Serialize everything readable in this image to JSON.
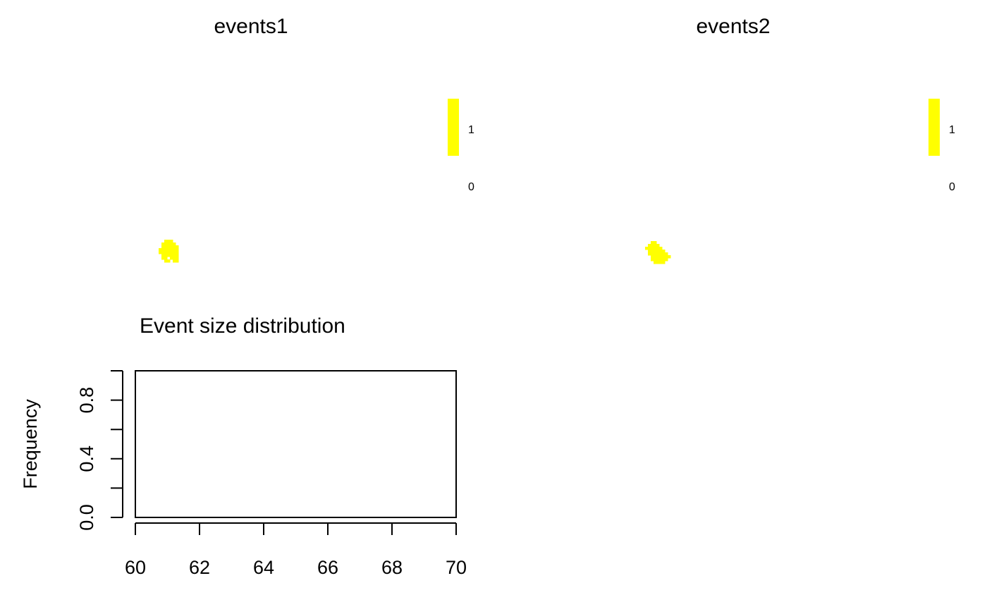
{
  "colors": {
    "event": "#ffff00",
    "axis": "#000000",
    "background": "#ffffff"
  },
  "chart_data": [
    {
      "type": "heatmap",
      "title": "events1",
      "legend": {
        "placement": "right",
        "ticks": [
          "1",
          "0"
        ],
        "levels": [
          {
            "value": 1,
            "color": "#ffff00"
          },
          {
            "value": 0,
            "color": "#ffffff"
          }
        ]
      },
      "value_present": 1,
      "event_cells": [
        [
          1,
          0
        ],
        [
          2,
          0
        ],
        [
          3,
          0
        ],
        [
          0,
          1
        ],
        [
          1,
          1
        ],
        [
          2,
          1
        ],
        [
          3,
          1
        ],
        [
          4,
          1
        ],
        [
          0,
          2
        ],
        [
          1,
          2
        ],
        [
          2,
          2
        ],
        [
          3,
          2
        ],
        [
          4,
          2
        ],
        [
          5,
          2
        ],
        [
          -1,
          3
        ],
        [
          0,
          3
        ],
        [
          1,
          3
        ],
        [
          2,
          3
        ],
        [
          3,
          3
        ],
        [
          4,
          3
        ],
        [
          5,
          3
        ],
        [
          -1,
          4
        ],
        [
          0,
          4
        ],
        [
          1,
          4
        ],
        [
          2,
          4
        ],
        [
          3,
          4
        ],
        [
          4,
          4
        ],
        [
          5,
          4
        ],
        [
          0,
          5
        ],
        [
          1,
          5
        ],
        [
          2,
          5
        ],
        [
          3,
          5
        ],
        [
          4,
          5
        ],
        [
          5,
          5
        ],
        [
          0,
          6
        ],
        [
          1,
          6
        ],
        [
          3,
          6
        ],
        [
          4,
          6
        ],
        [
          5,
          6
        ],
        [
          1,
          7
        ],
        [
          2,
          7
        ],
        [
          4,
          7
        ],
        [
          5,
          7
        ]
      ]
    },
    {
      "type": "heatmap",
      "title": "events2",
      "legend": {
        "placement": "right",
        "ticks": [
          "1",
          "0"
        ],
        "levels": [
          {
            "value": 1,
            "color": "#ffff00"
          },
          {
            "value": 0,
            "color": "#ffffff"
          }
        ]
      },
      "value_present": 1,
      "event_cells": [
        [
          1,
          0
        ],
        [
          2,
          0
        ],
        [
          0,
          1
        ],
        [
          1,
          1
        ],
        [
          2,
          1
        ],
        [
          3,
          1
        ],
        [
          -1,
          2
        ],
        [
          0,
          2
        ],
        [
          1,
          2
        ],
        [
          2,
          2
        ],
        [
          3,
          2
        ],
        [
          4,
          2
        ],
        [
          0,
          3
        ],
        [
          1,
          3
        ],
        [
          2,
          3
        ],
        [
          3,
          3
        ],
        [
          4,
          3
        ],
        [
          5,
          3
        ],
        [
          0,
          4
        ],
        [
          1,
          4
        ],
        [
          2,
          4
        ],
        [
          3,
          4
        ],
        [
          4,
          4
        ],
        [
          5,
          4
        ],
        [
          6,
          4
        ],
        [
          1,
          5
        ],
        [
          2,
          5
        ],
        [
          3,
          5
        ],
        [
          4,
          5
        ],
        [
          5,
          5
        ],
        [
          6,
          5
        ],
        [
          7,
          5
        ],
        [
          1,
          6
        ],
        [
          2,
          6
        ],
        [
          3,
          6
        ],
        [
          4,
          6
        ],
        [
          5,
          6
        ],
        [
          6,
          6
        ],
        [
          2,
          7
        ],
        [
          3,
          7
        ],
        [
          4,
          7
        ],
        [
          5,
          7
        ]
      ]
    },
    {
      "type": "bar",
      "title": "Event size distribution",
      "xlabel": "",
      "ylabel": "Frequency",
      "xlim": [
        60,
        70
      ],
      "ylim": [
        0,
        1
      ],
      "x_ticks": [
        60,
        62,
        64,
        66,
        68,
        70
      ],
      "y_ticks": [
        0.0,
        0.4,
        0.8
      ],
      "y_tick_labels": [
        "0.0",
        "0.4",
        "0.8"
      ],
      "x_tick_labels": [
        "60",
        "62",
        "64",
        "66",
        "68",
        "70"
      ],
      "bars": []
    }
  ]
}
